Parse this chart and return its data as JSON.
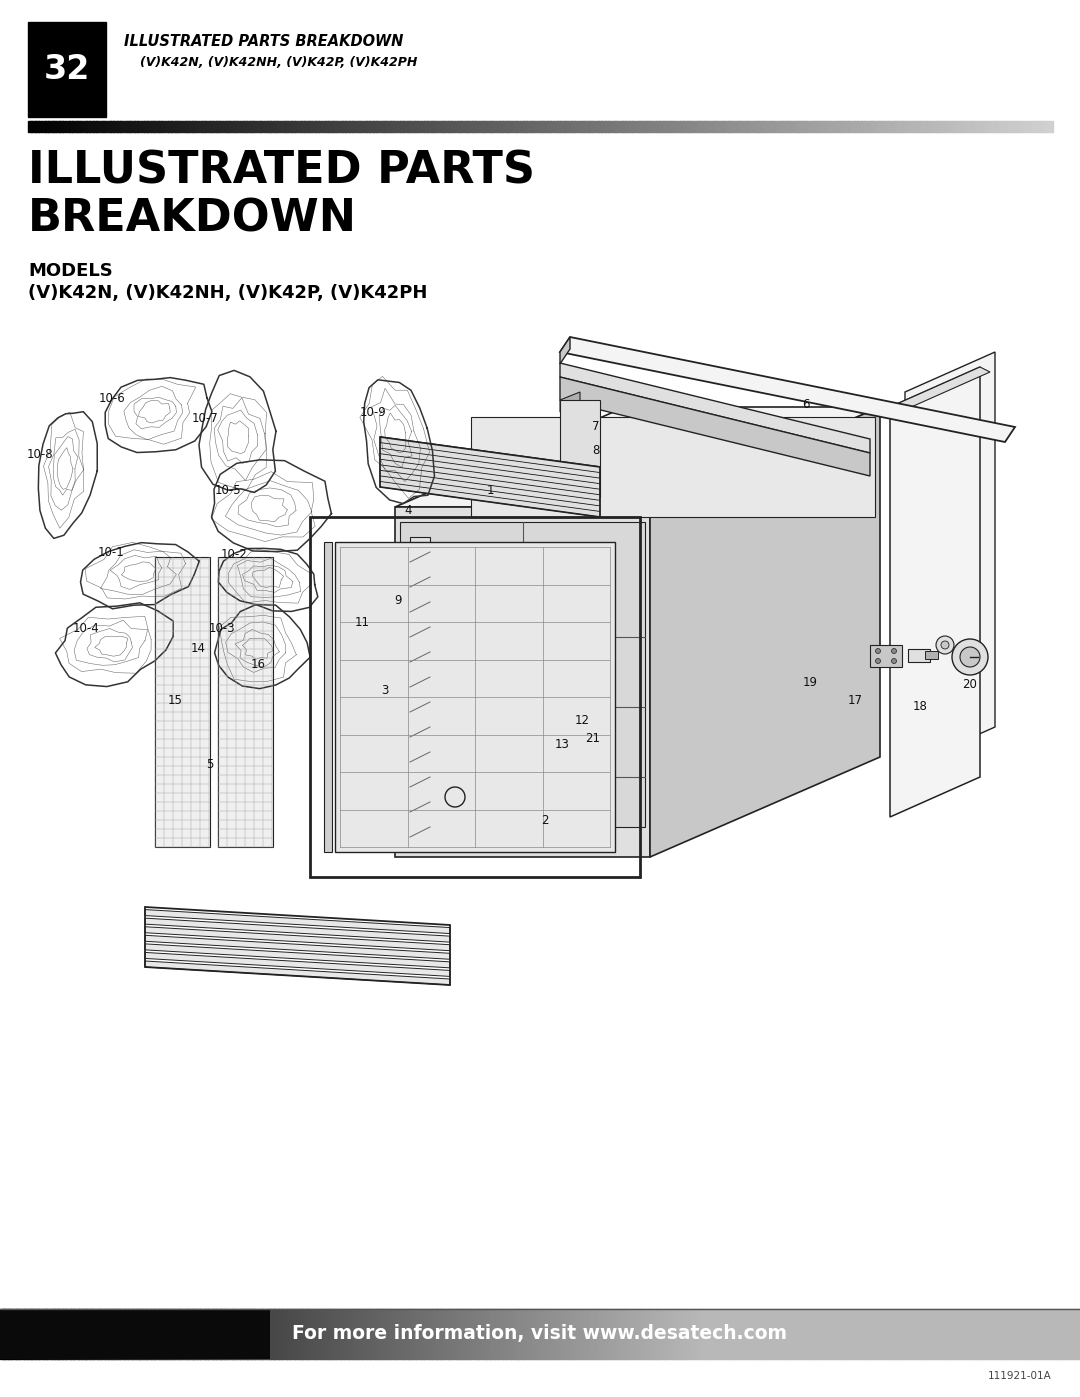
{
  "page_number": "32",
  "header_title_line1": "ILLUSTRATED PARTS BREAKDOWN",
  "header_title_line2": "(V)K42N, (V)K42NH, (V)K42P, (V)K42PH",
  "main_title_line1": "ILLUSTRATED PARTS",
  "main_title_line2": "BREAKDOWN",
  "models_label": "MODELS",
  "models_text": "(V)K42N, (V)K42NH, (V)K42P, (V)K42PH",
  "footer_text": "For more information, visit www.desatech.com",
  "doc_number": "111921-01A",
  "bg_color": "#ffffff",
  "edge_color": "#222222",
  "light_face": "#f4f4f4",
  "mid_face": "#e0e0e0",
  "dark_face": "#c8c8c8",
  "very_dark_face": "#b0b0b0"
}
